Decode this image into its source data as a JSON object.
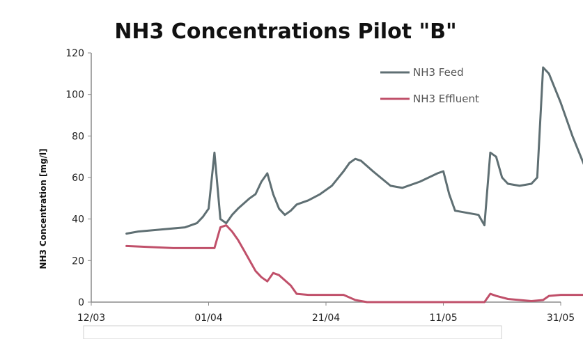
{
  "chart_data": {
    "type": "line",
    "title": "NH3 Concentrations Pilot \"B\"",
    "xlabel": "",
    "ylabel": "NH3 Concentration [mg/l]",
    "xlim": [
      "12/03",
      "31/05"
    ],
    "ylim": [
      0,
      120
    ],
    "y_ticks": [
      0,
      20,
      40,
      60,
      80,
      100,
      120
    ],
    "x_ticks": [
      "12/03",
      "01/04",
      "21/04",
      "11/05",
      "31/05"
    ],
    "legend_position": "top-right",
    "grid": false,
    "series": [
      {
        "name": "NH3 Feed",
        "color": "#5f6f73",
        "points": [
          [
            "18/03",
            33
          ],
          [
            "20/03",
            34
          ],
          [
            "24/03",
            35
          ],
          [
            "28/03",
            36
          ],
          [
            "30/03",
            38
          ],
          [
            "31/03",
            41
          ],
          [
            "01/04",
            45
          ],
          [
            "02/04",
            72
          ],
          [
            "03/04",
            40
          ],
          [
            "04/04",
            38
          ],
          [
            "05/04",
            42
          ],
          [
            "06/04",
            45
          ],
          [
            "08/04",
            50
          ],
          [
            "09/04",
            52
          ],
          [
            "10/04",
            58
          ],
          [
            "11/04",
            62
          ],
          [
            "12/04",
            52
          ],
          [
            "13/04",
            45
          ],
          [
            "14/04",
            42
          ],
          [
            "15/04",
            44
          ],
          [
            "16/04",
            47
          ],
          [
            "18/04",
            49
          ],
          [
            "20/04",
            52
          ],
          [
            "22/04",
            56
          ],
          [
            "24/04",
            63
          ],
          [
            "25/04",
            67
          ],
          [
            "26/04",
            69
          ],
          [
            "27/04",
            68
          ],
          [
            "29/04",
            63
          ],
          [
            "02/05",
            56
          ],
          [
            "04/05",
            55
          ],
          [
            "07/05",
            58
          ],
          [
            "10/05",
            62
          ],
          [
            "11/05",
            63
          ],
          [
            "12/05",
            52
          ],
          [
            "13/05",
            44
          ],
          [
            "15/05",
            43
          ],
          [
            "17/05",
            42
          ],
          [
            "18/05",
            37
          ],
          [
            "19/05",
            72
          ],
          [
            "20/05",
            70
          ],
          [
            "21/05",
            60
          ],
          [
            "22/05",
            57
          ],
          [
            "24/05",
            56
          ],
          [
            "26/05",
            57
          ],
          [
            "27/05",
            60
          ],
          [
            "28/05",
            113
          ],
          [
            "29/05",
            110
          ],
          [
            "31/05",
            96
          ],
          [
            "02/06",
            80
          ],
          [
            "04/06",
            66
          ]
        ]
      },
      {
        "name": "NH3 Effluent",
        "color": "#c0506a",
        "points": [
          [
            "18/03",
            27
          ],
          [
            "22/03",
            26.5
          ],
          [
            "26/03",
            26
          ],
          [
            "30/03",
            26
          ],
          [
            "02/04",
            26
          ],
          [
            "03/04",
            36
          ],
          [
            "04/04",
            37
          ],
          [
            "05/04",
            34
          ],
          [
            "06/04",
            30
          ],
          [
            "07/04",
            25
          ],
          [
            "09/04",
            15
          ],
          [
            "10/04",
            12
          ],
          [
            "11/04",
            10
          ],
          [
            "12/04",
            14
          ],
          [
            "13/04",
            13
          ],
          [
            "15/04",
            8
          ],
          [
            "16/04",
            4
          ],
          [
            "18/04",
            3.5
          ],
          [
            "21/04",
            3.5
          ],
          [
            "24/04",
            3.5
          ],
          [
            "26/04",
            1
          ],
          [
            "28/04",
            0
          ],
          [
            "05/05",
            0
          ],
          [
            "12/05",
            0
          ],
          [
            "18/05",
            0
          ],
          [
            "19/05",
            4
          ],
          [
            "20/05",
            3
          ],
          [
            "22/05",
            1.5
          ],
          [
            "26/05",
            0.5
          ],
          [
            "28/05",
            1
          ],
          [
            "29/05",
            3
          ],
          [
            "31/05",
            3.5
          ],
          [
            "04/06",
            3.5
          ]
        ]
      }
    ]
  }
}
